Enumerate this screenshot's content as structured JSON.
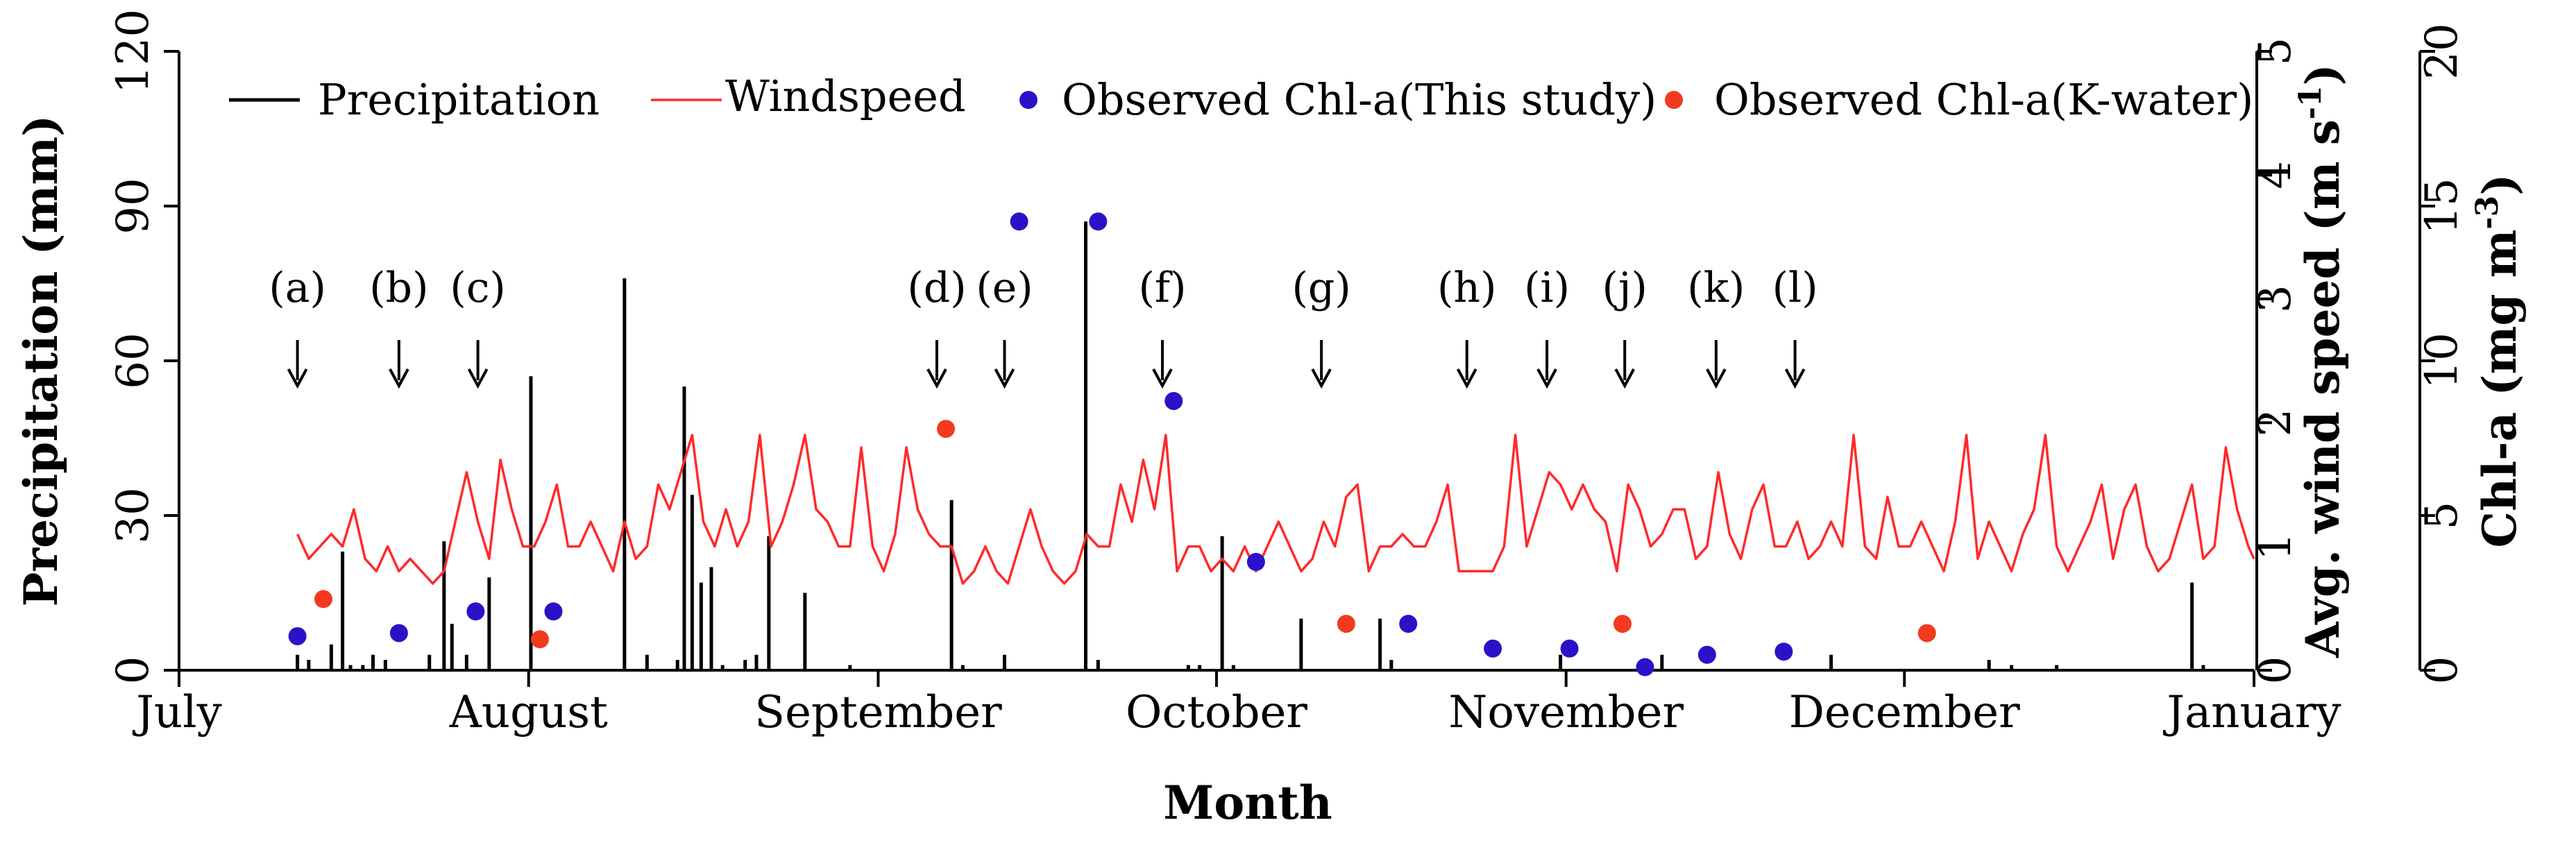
{
  "chart_data": {
    "type": "bar+line+scatter",
    "xlabel": "Month",
    "x_ticks": [
      "July",
      "August",
      "September",
      "October",
      "November",
      "December",
      "January"
    ],
    "x_tick_days": [
      0,
      31,
      62,
      92,
      123,
      153,
      184
    ],
    "y_left": {
      "label": "Precipitation (mm)",
      "lim": [
        0,
        120
      ],
      "ticks": [
        0,
        30,
        60,
        90,
        120
      ]
    },
    "y_right1": {
      "label_main": "Avg. wind speed (m s",
      "label_sup": "-1",
      "label_end": ")",
      "lim": [
        0,
        5
      ],
      "ticks": [
        0,
        1,
        2,
        3,
        4,
        5
      ]
    },
    "y_right2": {
      "label_main": "Chl-a (mg m",
      "label_sup": "-3",
      "label_end": ")",
      "lim": [
        0,
        20
      ],
      "ticks": [
        0,
        5,
        10,
        15,
        20
      ]
    },
    "legend": {
      "placement": "top",
      "entries": [
        {
          "label": "Precipitation",
          "kind": "line",
          "color": "#000000"
        },
        {
          "label": "Windspeed",
          "kind": "line",
          "color": "#ff2a2a"
        },
        {
          "label": "Observed Chl-a(This study)",
          "kind": "dot",
          "color": "#2a12c8"
        },
        {
          "label": "Observed Chl-a(K-water)",
          "kind": "dot",
          "color": "#f23a1e"
        }
      ]
    },
    "precipitation_series": {
      "name": "Precipitation",
      "day": [
        10.5,
        11.5,
        13.5,
        14.5,
        15.2,
        16.3,
        17.2,
        18.3,
        22.2,
        23.5,
        24.2,
        25.5,
        27.5,
        31.2,
        39.5,
        41.5,
        44.2,
        44.8,
        45.5,
        46.3,
        47.2,
        48.2,
        50.2,
        51.2,
        52.3,
        55.5,
        59.5,
        68.5,
        69.5,
        73.2,
        80.4,
        81.5,
        89.5,
        90.5,
        92.5,
        93.5,
        99.5,
        106.5,
        107.5,
        122.5,
        131.5,
        146.5,
        160.5,
        162.5,
        166.5,
        178.5,
        179.5
      ],
      "values": [
        3,
        2,
        5,
        23,
        1,
        1,
        3,
        2,
        3,
        25,
        9,
        3,
        18,
        57,
        76,
        3,
        2,
        55,
        34,
        17,
        20,
        1,
        2,
        3,
        26,
        15,
        1,
        33,
        1,
        3,
        87,
        2,
        1,
        1,
        26,
        1,
        10,
        10,
        2,
        3,
        3,
        3,
        2,
        1,
        1,
        17,
        1
      ]
    },
    "windspeed_series": {
      "name": "Windspeed",
      "day": [
        10.5,
        11.5,
        12.5,
        13.5,
        14.5,
        15.5,
        16.5,
        17.5,
        18.5,
        19.5,
        20.5,
        21.5,
        22.5,
        23.5,
        24.5,
        25.5,
        26.5,
        27.5,
        28.5,
        29.5,
        30.5,
        31.5,
        32.5,
        33.5,
        34.5,
        35.5,
        36.5,
        37.5,
        38.5,
        39.5,
        40.5,
        41.5,
        42.5,
        43.5,
        44.5,
        45.5,
        46.5,
        47.5,
        48.5,
        49.5,
        50.5,
        51.5,
        52.5,
        53.5,
        54.5,
        55.5,
        56.5,
        57.5,
        58.5,
        59.5,
        60.5,
        61.5,
        62.5,
        63.5,
        64.5,
        65.5,
        66.5,
        67.5,
        68.5,
        69.5,
        70.5,
        71.5,
        72.5,
        73.5,
        74.5,
        75.5,
        76.5,
        77.5,
        78.5,
        79.5,
        80.5,
        81.5,
        82.5,
        83.5,
        84.5,
        85.5,
        86.5,
        87.5,
        88.5,
        89.5,
        90.5,
        91.5,
        92.5,
        93.5,
        94.5,
        95.5,
        96.5,
        97.5,
        98.5,
        99.5,
        100.5,
        101.5,
        102.5,
        103.5,
        104.5,
        105.5,
        106.5,
        107.5,
        108.5,
        109.5,
        110.5,
        111.5,
        112.5,
        113.5,
        114.5,
        115.5,
        116.5,
        117.5,
        118.5,
        119.5,
        120.5,
        121.5,
        122.5,
        123.5,
        124.5,
        125.5,
        126.5,
        127.5,
        128.5,
        129.5,
        130.5,
        131.5,
        132.5,
        133.5,
        134.5,
        135.5,
        136.5,
        137.5,
        138.5,
        139.5,
        140.5,
        141.5,
        142.5,
        143.5,
        144.5,
        145.5,
        146.5,
        147.5,
        148.5,
        149.5,
        150.5,
        151.5,
        152.5,
        153.5,
        154.5,
        155.5,
        156.5,
        157.5,
        158.5,
        159.5,
        160.5,
        161.5,
        162.5,
        163.5,
        164.5,
        165.5,
        166.5,
        167.5,
        168.5,
        169.5,
        170.5,
        171.5,
        172.5,
        173.5,
        174.5,
        175.5,
        176.5,
        177.5,
        178.5,
        179.5,
        180.5,
        181.5,
        182.5,
        183.5,
        184.0
      ],
      "values": [
        1.1,
        0.9,
        1.0,
        1.1,
        1.0,
        1.3,
        0.9,
        0.8,
        1.0,
        0.8,
        0.9,
        0.8,
        0.7,
        0.8,
        1.2,
        1.6,
        1.2,
        0.9,
        1.7,
        1.3,
        1.0,
        1.0,
        1.2,
        1.5,
        1.0,
        1.0,
        1.2,
        1.0,
        0.8,
        1.2,
        0.9,
        1.0,
        1.5,
        1.3,
        1.6,
        1.9,
        1.2,
        1.0,
        1.3,
        1.0,
        1.2,
        1.9,
        1.0,
        1.2,
        1.5,
        1.9,
        1.3,
        1.2,
        1.0,
        1.0,
        1.8,
        1.0,
        0.8,
        1.1,
        1.8,
        1.3,
        1.1,
        1.0,
        1.0,
        0.7,
        0.8,
        1.0,
        0.8,
        0.7,
        1.0,
        1.3,
        1.0,
        0.8,
        0.7,
        0.8,
        1.1,
        1.0,
        1.0,
        1.5,
        1.2,
        1.7,
        1.3,
        1.9,
        0.8,
        1.0,
        1.0,
        0.8,
        0.9,
        0.8,
        1.0,
        0.8,
        1.0,
        1.2,
        1.0,
        0.8,
        0.9,
        1.2,
        1.0,
        1.4,
        1.5,
        0.8,
        1.0,
        1.0,
        1.1,
        1.0,
        1.0,
        1.2,
        1.5,
        0.8,
        0.8,
        0.8,
        0.8,
        1.0,
        1.9,
        1.0,
        1.3,
        1.6,
        1.5,
        1.3,
        1.5,
        1.3,
        1.2,
        0.8,
        1.5,
        1.3,
        1.0,
        1.1,
        1.3,
        1.3,
        0.9,
        1.0,
        1.6,
        1.1,
        0.9,
        1.3,
        1.5,
        1.0,
        1.0,
        1.2,
        0.9,
        1.0,
        1.2,
        1.0,
        1.9,
        1.0,
        0.9,
        1.4,
        1.0,
        1.0,
        1.2,
        1.0,
        0.8,
        1.2,
        1.9,
        0.9,
        1.2,
        1.0,
        0.8,
        1.1,
        1.3,
        1.9,
        1.0,
        0.8,
        1.0,
        1.2,
        1.5,
        0.9,
        1.3,
        1.5,
        1.0,
        0.8,
        0.9,
        1.2,
        1.5,
        0.9,
        1.0,
        1.8,
        1.3,
        1.0,
        0.9,
        1.2,
        1.5,
        1.0,
        0.8,
        0.9,
        1.2,
        1.5,
        0.9,
        0.8,
        1.1
      ]
    },
    "chla_this_study": {
      "name": "Observed Chl-a(This study)",
      "day": [
        10.5,
        19.5,
        26.3,
        33.2,
        74.5,
        81.5,
        88.2,
        95.5,
        109.0,
        116.5,
        123.3,
        130.0,
        135.5,
        142.3
      ],
      "values": [
        1.1,
        1.2,
        1.9,
        1.9,
        14.5,
        14.5,
        8.7,
        3.5,
        1.5,
        0.7,
        0.7,
        0.1,
        0.5,
        0.6
      ]
    },
    "chla_kwater": {
      "name": "Observed Chl-a(K-water)",
      "day": [
        12.8,
        32.0,
        68.0,
        103.5,
        128.0,
        155.0
      ],
      "values": [
        2.3,
        1.0,
        7.8,
        1.5,
        1.5,
        1.2
      ]
    },
    "annotations": {
      "labels": [
        "(a)",
        "(b)",
        "(c)",
        "(d)",
        "(e)",
        "(f)",
        "(g)",
        "(h)",
        "(i)",
        "(j)",
        "(k)",
        "(l)"
      ],
      "day": [
        10.5,
        19.5,
        26.5,
        67.2,
        73.2,
        87.2,
        101.3,
        114.2,
        121.3,
        128.2,
        136.3,
        143.3
      ]
    }
  }
}
